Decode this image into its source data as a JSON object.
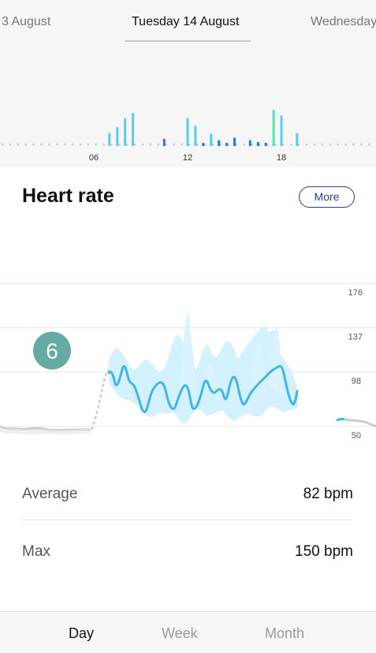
{
  "date_nav": {
    "prev": "3 August",
    "current": "Tuesday 14 August",
    "next": "Wednesday"
  },
  "activity_chart": {
    "hour_labels": [
      "06",
      "12",
      "18"
    ],
    "bars": [
      {
        "hour": 7.0,
        "level": 0.36,
        "color": "#4fd0ef"
      },
      {
        "hour": 7.5,
        "level": 0.52,
        "color": "#4fd0ef"
      },
      {
        "hour": 8.0,
        "level": 0.77,
        "color": "#4fd0ef"
      },
      {
        "hour": 8.5,
        "level": 0.91,
        "color": "#4fd0ef"
      },
      {
        "hour": 10.5,
        "level": 0.2,
        "color": "#2a78e0"
      },
      {
        "hour": 12.0,
        "level": 0.77,
        "color": "#4fd0ef"
      },
      {
        "hour": 12.5,
        "level": 0.55,
        "color": "#4fd0ef"
      },
      {
        "hour": 13.0,
        "level": 0.09,
        "color": "#2a78e0"
      },
      {
        "hour": 13.5,
        "level": 0.34,
        "color": "#4fd0ef"
      },
      {
        "hour": 14.0,
        "level": 0.16,
        "color": "#2a78e0"
      },
      {
        "hour": 14.5,
        "level": 0.09,
        "color": "#2a78e0"
      },
      {
        "hour": 15.0,
        "level": 0.23,
        "color": "#2a78e0"
      },
      {
        "hour": 16.0,
        "level": 0.16,
        "color": "#2a78e0"
      },
      {
        "hour": 16.5,
        "level": 0.11,
        "color": "#2a78e0"
      },
      {
        "hour": 17.0,
        "level": 0.09,
        "color": "#2a78e0"
      },
      {
        "hour": 17.5,
        "level": 1.0,
        "color": "#5ee0b0"
      },
      {
        "hour": 18.0,
        "level": 0.84,
        "color": "#4fd0ef"
      },
      {
        "hour": 19.0,
        "level": 0.36,
        "color": "#4fd0ef"
      }
    ],
    "colors": {
      "dots": "#c8c8c8"
    }
  },
  "heart_rate": {
    "title": "Heart rate",
    "more_label": "More",
    "badge": "6",
    "badge_color": "#66aaa4",
    "line_color": "#3fb6ea",
    "band_color": "#cdefff",
    "resting_color": "#cccccc",
    "axis_ticks": [
      "176",
      "137",
      "98",
      "50"
    ],
    "average_label": "Average",
    "average_value": "82 bpm",
    "max_label": "Max",
    "max_value": "150 bpm"
  },
  "tabs": {
    "items": [
      "Day",
      "Week",
      "Month"
    ],
    "active": "Day"
  }
}
